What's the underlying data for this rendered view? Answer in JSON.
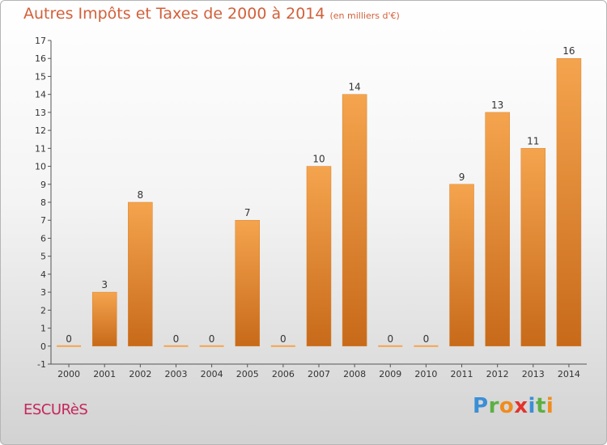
{
  "title": "Autres Impôts et Taxes de 2000 à 2014",
  "subtitle": "(en milliers d'€)",
  "town": "ESCURèS",
  "logo": {
    "letters": [
      "P",
      "r",
      "o",
      "x",
      "i",
      "t",
      "i"
    ],
    "colors": [
      "#3c8fd6",
      "#5cb043",
      "#f08c1e",
      "#e3332c",
      "#3c8fd6",
      "#5cb043",
      "#f08c1e"
    ]
  },
  "colors": {
    "bar_top": "#f5a44e",
    "bar_bottom": "#c76a1a",
    "title": "#d2603a",
    "town": "#c6255c"
  },
  "chart_data": {
    "type": "bar",
    "title": "Autres Impôts et Taxes de 2000 à 2014",
    "subtitle": "(en milliers d'€)",
    "categories": [
      "2000",
      "2001",
      "2002",
      "2003",
      "2004",
      "2005",
      "2006",
      "2007",
      "2008",
      "2009",
      "2010",
      "2011",
      "2012",
      "2013",
      "2014"
    ],
    "values": [
      0,
      3,
      8,
      0,
      0,
      7,
      0,
      10,
      14,
      0,
      0,
      9,
      13,
      11,
      16
    ],
    "ylim": [
      -1,
      17
    ],
    "yticks": [
      -1,
      0,
      1,
      2,
      3,
      4,
      5,
      6,
      7,
      8,
      9,
      10,
      11,
      12,
      13,
      14,
      15,
      16,
      17
    ],
    "xlabel": "",
    "ylabel": "",
    "grid": false
  }
}
